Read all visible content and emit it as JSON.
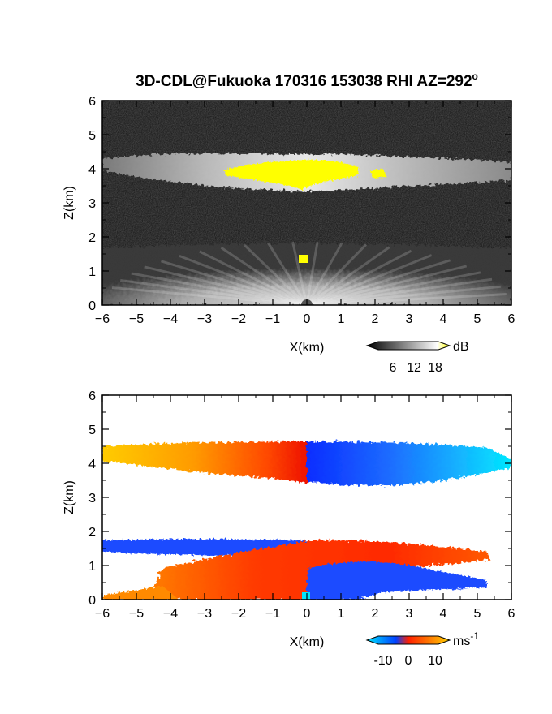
{
  "chart_data": {
    "title": "3D-CDL@Fukuoka 170316 153038 RHI AZ=292",
    "title_superscript": "o",
    "panels": [
      {
        "type": "heatmap",
        "name": "reflectivity",
        "xlabel": "X(km)",
        "ylabel": "Z(km)",
        "xlim": [
          -6,
          6
        ],
        "ylim": [
          0,
          6
        ],
        "xticks": [
          "-6",
          "-5",
          "-4",
          "-3",
          "-2",
          "-1",
          "0",
          "1",
          "2",
          "3",
          "4",
          "5",
          "6"
        ],
        "yticks": [
          "0",
          "1",
          "2",
          "3",
          "4",
          "5",
          "6"
        ],
        "background_color": "#1e1e1e",
        "colorbar": {
          "unit": "dB",
          "ticks": [
            "6",
            "12",
            "18"
          ],
          "colors": [
            "#000000",
            "#ffffff",
            "#ffff00"
          ]
        },
        "layers": [
          {
            "label": "upper bright band",
            "z_min_km": 3.6,
            "z_max_km": 4.5,
            "x_range_km": [
              -6,
              6
            ],
            "color": "#d8d8d8"
          },
          {
            "label": "high reflectivity",
            "z_min_km": 3.4,
            "z_max_km": 4.2,
            "x_range_km": [
              -2.4,
              2.3
            ],
            "color": "#ffff00"
          },
          {
            "label": "lower fan",
            "z_min_km": 0,
            "z_max_km": 1.7,
            "x_range_km": [
              -6,
              6
            ],
            "color": "#e6e6e6"
          }
        ]
      },
      {
        "type": "heatmap",
        "name": "doppler velocity",
        "xlabel": "X(km)",
        "ylabel": "Z(km)",
        "xlim": [
          -6,
          6
        ],
        "ylim": [
          0,
          6
        ],
        "xticks": [
          "-6",
          "-5",
          "-4",
          "-3",
          "-2",
          "-1",
          "0",
          "1",
          "2",
          "3",
          "4",
          "5",
          "6"
        ],
        "yticks": [
          "0",
          "1",
          "2",
          "3",
          "4",
          "5",
          "6"
        ],
        "background_color": "#ffffff",
        "colorbar": {
          "unit": "ms",
          "unit_superscript": "-1",
          "ticks": [
            "-10",
            "0",
            "10"
          ],
          "colors": [
            "#00e5ff",
            "#0040ff",
            "#ff2000",
            "#ffd000"
          ]
        },
        "layers": [
          {
            "label": "upper layer approaching",
            "z_min_km": 3.4,
            "z_max_km": 4.5,
            "x_range_km": [
              -6,
              0
            ],
            "velocity_ms": [
              12,
              3
            ]
          },
          {
            "label": "upper layer receding",
            "z_min_km": 3.3,
            "z_max_km": 4.5,
            "x_range_km": [
              0,
              6
            ],
            "velocity_ms": [
              -6,
              -13
            ]
          },
          {
            "label": "low layer blue",
            "z_min_km": 1.4,
            "z_max_km": 1.7,
            "x_range_km": [
              -6,
              0
            ],
            "velocity_ms": [
              -7,
              -7
            ]
          },
          {
            "label": "low layer red",
            "z_min_km": 0,
            "z_max_km": 1.7,
            "x_range_km": [
              -4.5,
              5.5
            ],
            "velocity_ms": [
              4,
              4
            ]
          },
          {
            "label": "near-surface blue",
            "z_min_km": 0,
            "z_max_km": 1.1,
            "x_range_km": [
              0,
              5
            ],
            "velocity_ms": [
              -7,
              -7
            ]
          }
        ]
      }
    ]
  }
}
